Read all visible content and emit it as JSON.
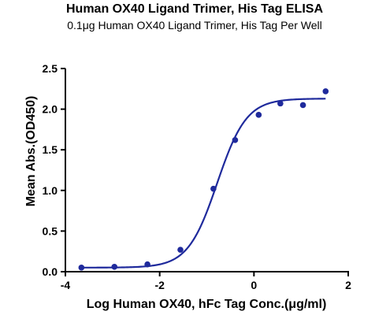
{
  "chart_data": {
    "type": "scatter",
    "title": "Human OX40 Ligand Trimer, His Tag ELISA",
    "subtitle": "0.1μg Human OX40 Ligand Trimer, His Tag Per Well",
    "xlabel": "Log Human OX40, hFc Tag Conc.(μg/ml)",
    "ylabel": "Mean Abs.(OD450)",
    "xlim": [
      -4,
      2
    ],
    "ylim": [
      0,
      2.5
    ],
    "x_ticks": [
      "-4",
      "-2",
      "0",
      "2"
    ],
    "y_ticks": [
      "0.0",
      "0.5",
      "1.0",
      "1.5",
      "2.0",
      "2.5"
    ],
    "grid": false,
    "series": [
      {
        "points": [
          {
            "x": -3.66,
            "y": 0.05
          },
          {
            "x": -2.96,
            "y": 0.06
          },
          {
            "x": -2.26,
            "y": 0.09
          },
          {
            "x": -1.56,
            "y": 0.27
          },
          {
            "x": -0.86,
            "y": 1.02
          },
          {
            "x": -0.4,
            "y": 1.62
          },
          {
            "x": 0.1,
            "y": 1.93
          },
          {
            "x": 0.56,
            "y": 2.07
          },
          {
            "x": 1.04,
            "y": 2.05
          },
          {
            "x": 1.52,
            "y": 2.22
          }
        ],
        "fit": {
          "model": "4PL",
          "bottom": 0.05,
          "top": 2.13,
          "logEC50": -0.78,
          "hill": 1.4,
          "x_range": [
            -3.66,
            1.52
          ]
        },
        "color": "#1f2a9c"
      }
    ]
  }
}
